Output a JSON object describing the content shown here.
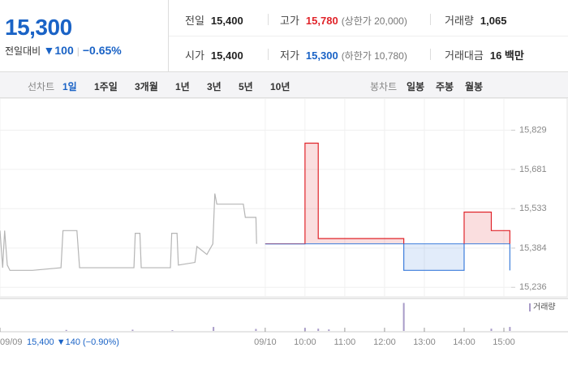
{
  "quote": {
    "price": "15,300",
    "change_label": "전일대비",
    "change": "▼100",
    "change_pct": "−0.65%"
  },
  "summary": [
    [
      {
        "label": "전일",
        "value": "15,400"
      },
      {
        "label": "고가",
        "value": "15,780",
        "note": "(상한가 20,000)"
      },
      {
        "label": "거래량",
        "value": "1,065"
      }
    ],
    [
      {
        "label": "시가",
        "value": "15,400"
      },
      {
        "label": "저가",
        "value": "15,300",
        "note": "(하한가 10,780)"
      },
      {
        "label": "거래대금",
        "value": "16 백만"
      }
    ]
  ],
  "tabs": {
    "line_label": "선차트",
    "line_items": [
      "1일",
      "1주일",
      "3개월",
      "1년",
      "3년",
      "5년",
      "10년"
    ],
    "line_selected": "1일",
    "candle_label": "봉차트",
    "candle_items": [
      "일봉",
      "주봉",
      "월봉"
    ]
  },
  "chart_data": {
    "type": "line",
    "baseline": 15400,
    "ylim": [
      15200,
      15950
    ],
    "yticks": [
      {
        "value": 15829,
        "label": "15,829"
      },
      {
        "value": 15681,
        "label": "15,681"
      },
      {
        "value": 15533,
        "label": "15,533"
      },
      {
        "value": 15384,
        "label": "15,384"
      },
      {
        "value": 15236,
        "label": "15,236"
      }
    ],
    "xlim": [
      -400,
      371
    ],
    "xticks": [
      {
        "value": -400,
        "label": "09/09"
      },
      {
        "value": 0,
        "label": "09/10"
      },
      {
        "value": 60,
        "label": "10:00"
      },
      {
        "value": 120,
        "label": "11:00"
      },
      {
        "value": 180,
        "label": "12:00"
      },
      {
        "value": 240,
        "label": "13:00"
      },
      {
        "value": 300,
        "label": "14:00"
      },
      {
        "value": 360,
        "label": "15:00"
      }
    ],
    "prev_summary": "15,400 ▼140 (−0.90%)",
    "series": [
      {
        "name": "09/09",
        "color": "#b5b5b5",
        "x": [
          -400,
          -396,
          -393,
          -389,
          -385,
          -351,
          -308,
          -305,
          -284,
          -280,
          -198,
          -196,
          -189,
          -187,
          -143,
          -141,
          -133,
          -131,
          -106,
          -103,
          -88,
          -79,
          -76,
          -73,
          -33,
          -30,
          -14,
          -13
        ],
        "values": [
          15450,
          15310,
          15450,
          15320,
          15300,
          15300,
          15310,
          15450,
          15450,
          15310,
          15310,
          15440,
          15440,
          15310,
          15310,
          15440,
          15440,
          15320,
          15330,
          15390,
          15360,
          15400,
          15590,
          15550,
          15550,
          15500,
          15500,
          15400
        ]
      },
      {
        "name": "09/10",
        "color": "#e0242a",
        "down_color": "#3d7ddb",
        "x": [
          0,
          60,
          60,
          80,
          80,
          209,
          209,
          300,
          300,
          341,
          341,
          369,
          369
        ],
        "values": [
          15400,
          15400,
          15780,
          15780,
          15420,
          15420,
          15300,
          15300,
          15520,
          15520,
          15450,
          15450,
          15300
        ]
      }
    ],
    "volume": {
      "name": "거래량",
      "color": "#a89bc8",
      "ylim": [
        0,
        600
      ],
      "x": [
        -300,
        -200,
        -140,
        -78,
        -14,
        60,
        80,
        96,
        209,
        341,
        369
      ],
      "values": [
        20,
        25,
        15,
        80,
        40,
        60,
        45,
        30,
        560,
        45,
        80
      ]
    }
  }
}
